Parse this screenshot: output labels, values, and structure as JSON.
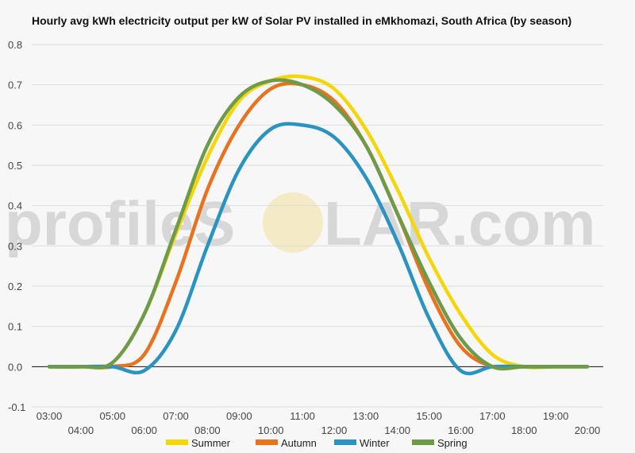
{
  "chart_data": {
    "type": "line",
    "title": "Hourly avg kWh electricity output per kW of Solar PV installed in eMkhomazi, South Africa (by season)",
    "xlabel": "",
    "ylabel": "",
    "x": [
      "03:00",
      "04:00",
      "05:00",
      "06:00",
      "07:00",
      "08:00",
      "09:00",
      "10:00",
      "11:00",
      "12:00",
      "13:00",
      "14:00",
      "15:00",
      "16:00",
      "17:00",
      "18:00",
      "19:00",
      "20:00"
    ],
    "ylim": [
      -0.1,
      0.8
    ],
    "yticks": [
      "0.8",
      "0.7",
      "0.6",
      "0.5",
      "0.4",
      "0.3",
      "0.2",
      "0.1",
      "0.0",
      "-0.1"
    ],
    "grid": true,
    "legend_position": "bottom",
    "series": [
      {
        "name": "Summer",
        "color": "#f5d60a",
        "values": [
          0.0,
          0.0,
          0.01,
          0.13,
          0.33,
          0.52,
          0.66,
          0.71,
          0.72,
          0.69,
          0.59,
          0.44,
          0.27,
          0.13,
          0.03,
          0.0,
          0.0,
          0.0
        ]
      },
      {
        "name": "Autumn",
        "color": "#e8731e",
        "values": [
          0.0,
          0.0,
          0.0,
          0.03,
          0.21,
          0.44,
          0.6,
          0.69,
          0.7,
          0.66,
          0.55,
          0.38,
          0.19,
          0.05,
          0.0,
          0.0,
          0.0,
          0.0
        ]
      },
      {
        "name": "Winter",
        "color": "#2a93c2",
        "values": [
          0.0,
          0.0,
          0.0,
          -0.01,
          0.09,
          0.3,
          0.49,
          0.59,
          0.6,
          0.57,
          0.47,
          0.31,
          0.12,
          -0.01,
          0.0,
          0.0,
          0.0,
          0.0
        ]
      },
      {
        "name": "Spring",
        "color": "#6e9b4a",
        "values": [
          0.0,
          0.0,
          0.01,
          0.13,
          0.34,
          0.55,
          0.67,
          0.71,
          0.7,
          0.65,
          0.55,
          0.38,
          0.21,
          0.07,
          0.0,
          0.0,
          0.0,
          0.0
        ]
      }
    ]
  },
  "watermark": {
    "prefix": "profileS",
    "suffix": "LAR.com"
  }
}
